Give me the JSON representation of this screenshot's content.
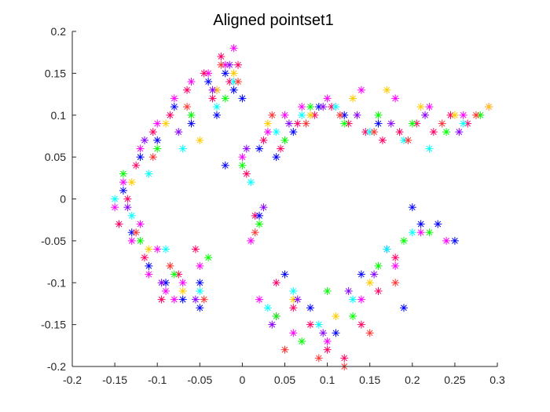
{
  "chart_data": {
    "type": "scatter",
    "title": "Aligned pointset1",
    "xlabel": "",
    "ylabel": "",
    "xlim": [
      -0.2,
      0.3
    ],
    "ylim": [
      -0.2,
      0.2
    ],
    "xticks": [
      "-0.2",
      "-0.15",
      "-0.1",
      "-0.05",
      "0",
      "0.05",
      "0.1",
      "0.15",
      "0.2",
      "0.25",
      "0.3"
    ],
    "yticks": [
      "-0.2",
      "-0.15",
      "-0.1",
      "-0.05",
      "0",
      "0.05",
      "0.1",
      "0.15",
      "0.2"
    ],
    "marker": "asterisk",
    "grid": false,
    "legend": "none",
    "palette": [
      "#ff00ff",
      "#ff0066",
      "#0000ff",
      "#00ffff",
      "#00ff00",
      "#ffcc00",
      "#ff3333",
      "#8a00ff"
    ],
    "series": [
      {
        "name": "",
        "color": "#ff00ff",
        "x": [
          -0.15,
          -0.14,
          -0.13,
          -0.12,
          -0.11,
          -0.1,
          -0.09,
          -0.08,
          -0.07,
          -0.06,
          -0.05,
          -0.04,
          -0.03,
          -0.02,
          -0.01,
          0.0,
          0.01,
          0.03,
          0.05,
          0.07,
          0.1,
          0.14,
          0.18,
          0.22,
          0.26,
          0.29,
          -0.12,
          -0.1,
          -0.08,
          0.02,
          0.04,
          0.06,
          0.1,
          0.14,
          0.18,
          0.21,
          0.24
        ],
        "y": [
          -0.01,
          0.02,
          -0.05,
          0.06,
          -0.09,
          0.09,
          -0.11,
          0.12,
          -0.1,
          0.14,
          -0.08,
          0.15,
          0.13,
          0.16,
          0.18,
          0.05,
          -0.05,
          0.08,
          0.1,
          0.11,
          0.12,
          0.13,
          0.12,
          0.11,
          0.1,
          0.11,
          -0.03,
          -0.06,
          -0.12,
          -0.12,
          -0.14,
          -0.16,
          -0.17,
          -0.12,
          -0.08,
          -0.04,
          -0.05
        ]
      },
      {
        "name": "",
        "color": "#ff0066",
        "x": [
          -0.145,
          -0.135,
          -0.125,
          -0.115,
          -0.105,
          -0.095,
          -0.085,
          -0.075,
          -0.065,
          -0.055,
          -0.045,
          -0.035,
          -0.025,
          -0.015,
          -0.005,
          0.005,
          0.015,
          0.025,
          0.045,
          0.065,
          0.085,
          0.105,
          0.125,
          0.145,
          0.165,
          0.185,
          0.205,
          0.225,
          0.245,
          0.265,
          0.04,
          0.06,
          0.08,
          0.1,
          0.12,
          0.14,
          0.16,
          0.18
        ],
        "y": [
          -0.03,
          0.0,
          0.04,
          -0.07,
          0.08,
          -0.12,
          0.1,
          -0.09,
          0.13,
          -0.06,
          0.15,
          0.12,
          0.17,
          0.14,
          0.16,
          0.03,
          -0.02,
          0.07,
          0.06,
          0.09,
          0.1,
          0.11,
          0.09,
          0.08,
          0.07,
          0.08,
          0.09,
          0.08,
          0.1,
          0.09,
          -0.1,
          -0.13,
          -0.15,
          -0.18,
          -0.19,
          -0.15,
          -0.11,
          -0.07
        ]
      },
      {
        "name": "",
        "color": "#0000ff",
        "x": [
          -0.14,
          -0.13,
          -0.12,
          -0.11,
          -0.1,
          -0.09,
          -0.08,
          -0.07,
          -0.06,
          -0.05,
          -0.04,
          -0.03,
          -0.02,
          -0.01,
          0.0,
          0.02,
          0.04,
          0.06,
          0.09,
          0.12,
          0.16,
          0.2,
          0.23,
          0.25,
          -0.05,
          -0.02,
          0.02,
          0.05,
          0.08,
          0.11,
          0.14,
          0.17,
          0.19,
          0.21
        ],
        "y": [
          0.01,
          -0.04,
          0.05,
          -0.08,
          0.07,
          -0.1,
          0.11,
          -0.12,
          0.09,
          -0.13,
          0.14,
          0.1,
          0.15,
          0.13,
          0.12,
          0.06,
          0.05,
          0.08,
          0.11,
          0.1,
          0.09,
          -0.01,
          -0.03,
          -0.05,
          -0.1,
          0.04,
          -0.02,
          -0.09,
          -0.13,
          -0.16,
          -0.09,
          -0.06,
          -0.13,
          -0.03
        ]
      },
      {
        "name": "",
        "color": "#00ffff",
        "x": [
          -0.15,
          -0.13,
          -0.11,
          -0.09,
          -0.07,
          -0.05,
          -0.03,
          -0.01,
          0.01,
          0.04,
          0.07,
          0.11,
          0.15,
          0.19,
          0.22,
          0.26,
          0.03,
          0.06,
          0.09,
          0.13,
          0.17,
          0.2
        ],
        "y": [
          0.0,
          -0.02,
          0.03,
          -0.06,
          0.06,
          -0.11,
          0.11,
          0.14,
          0.02,
          0.08,
          0.1,
          0.11,
          0.08,
          0.07,
          0.06,
          0.09,
          -0.13,
          -0.11,
          -0.15,
          -0.12,
          -0.06,
          -0.04
        ]
      },
      {
        "name": "",
        "color": "#00ff00",
        "x": [
          -0.14,
          -0.12,
          -0.1,
          -0.08,
          -0.06,
          -0.04,
          -0.02,
          0.0,
          0.02,
          0.05,
          0.08,
          0.12,
          0.16,
          0.2,
          0.24,
          0.28,
          0.04,
          0.07,
          0.1,
          0.13,
          0.16,
          0.19,
          0.22
        ],
        "y": [
          0.03,
          -0.05,
          0.06,
          -0.09,
          0.1,
          -0.07,
          0.12,
          0.04,
          -0.03,
          0.07,
          0.11,
          0.09,
          0.1,
          0.09,
          0.08,
          0.1,
          -0.14,
          -0.17,
          -0.11,
          -0.14,
          -0.08,
          -0.05,
          -0.04
        ]
      },
      {
        "name": "",
        "color": "#ffcc00",
        "x": [
          -0.13,
          -0.11,
          -0.09,
          -0.07,
          -0.05,
          -0.03,
          -0.01,
          0.03,
          0.08,
          0.13,
          0.17,
          0.21,
          0.25,
          0.29,
          0.06,
          0.11,
          0.15
        ],
        "y": [
          0.02,
          -0.06,
          0.09,
          -0.11,
          0.07,
          0.13,
          0.15,
          0.09,
          0.1,
          0.12,
          0.13,
          0.11,
          0.1,
          0.11,
          -0.12,
          -0.14,
          -0.1
        ]
      },
      {
        "name": "",
        "color": "#ff3333",
        "x": [
          -0.125,
          -0.105,
          -0.085,
          -0.065,
          -0.045,
          -0.025,
          -0.005,
          0.015,
          0.035,
          0.075,
          0.115,
          0.155,
          0.195,
          0.235,
          0.275,
          0.05,
          0.09,
          0.12,
          0.15,
          0.18
        ],
        "y": [
          -0.04,
          0.05,
          -0.08,
          0.11,
          -0.12,
          0.16,
          0.14,
          -0.04,
          0.1,
          0.09,
          0.1,
          0.08,
          0.07,
          0.09,
          0.1,
          -0.18,
          -0.19,
          -0.2,
          -0.16,
          -0.1
        ]
      },
      {
        "name": "",
        "color": "#8a00ff",
        "x": [
          -0.135,
          -0.115,
          -0.095,
          -0.075,
          -0.055,
          -0.035,
          -0.015,
          0.005,
          0.025,
          0.055,
          0.095,
          0.135,
          0.175,
          0.215,
          0.255,
          0.035,
          0.065,
          0.095,
          0.125,
          0.155
        ],
        "y": [
          -0.01,
          0.07,
          -0.1,
          0.08,
          -0.12,
          0.13,
          0.16,
          0.06,
          -0.01,
          0.09,
          0.11,
          0.1,
          0.09,
          0.1,
          0.08,
          -0.15,
          -0.12,
          -0.16,
          -0.11,
          -0.09
        ]
      }
    ]
  }
}
